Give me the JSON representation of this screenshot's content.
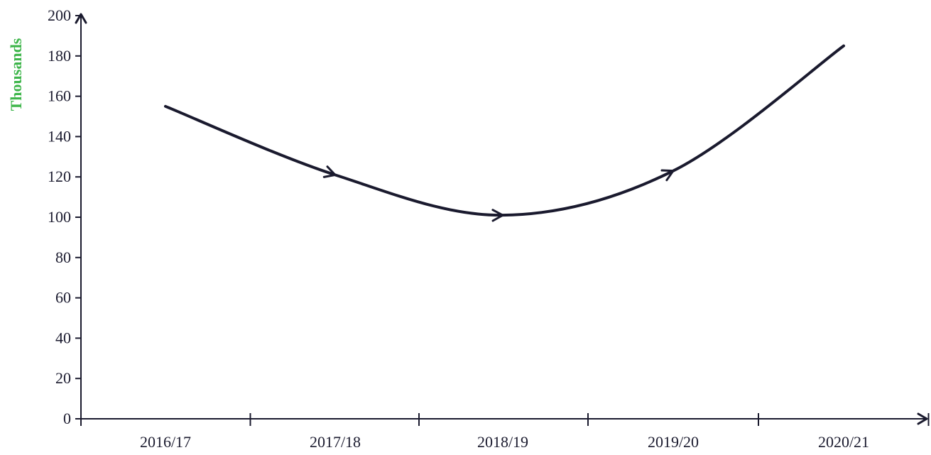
{
  "chart_data": {
    "type": "line",
    "title": "",
    "xlabel": "",
    "ylabel": "Thousands",
    "categories": [
      "2016/17",
      "2017/18",
      "2018/19",
      "2019/20",
      "2020/21"
    ],
    "series": [
      {
        "values": [
          155,
          121,
          101,
          123,
          185
        ]
      }
    ],
    "ylim": [
      0,
      200
    ],
    "yticks": [
      0,
      20,
      40,
      60,
      80,
      100,
      120,
      140,
      160,
      180,
      200
    ],
    "grid": false,
    "line_color": "#1a1a2e",
    "ylabel_color": "#3db54a",
    "direction_arrows": true
  }
}
